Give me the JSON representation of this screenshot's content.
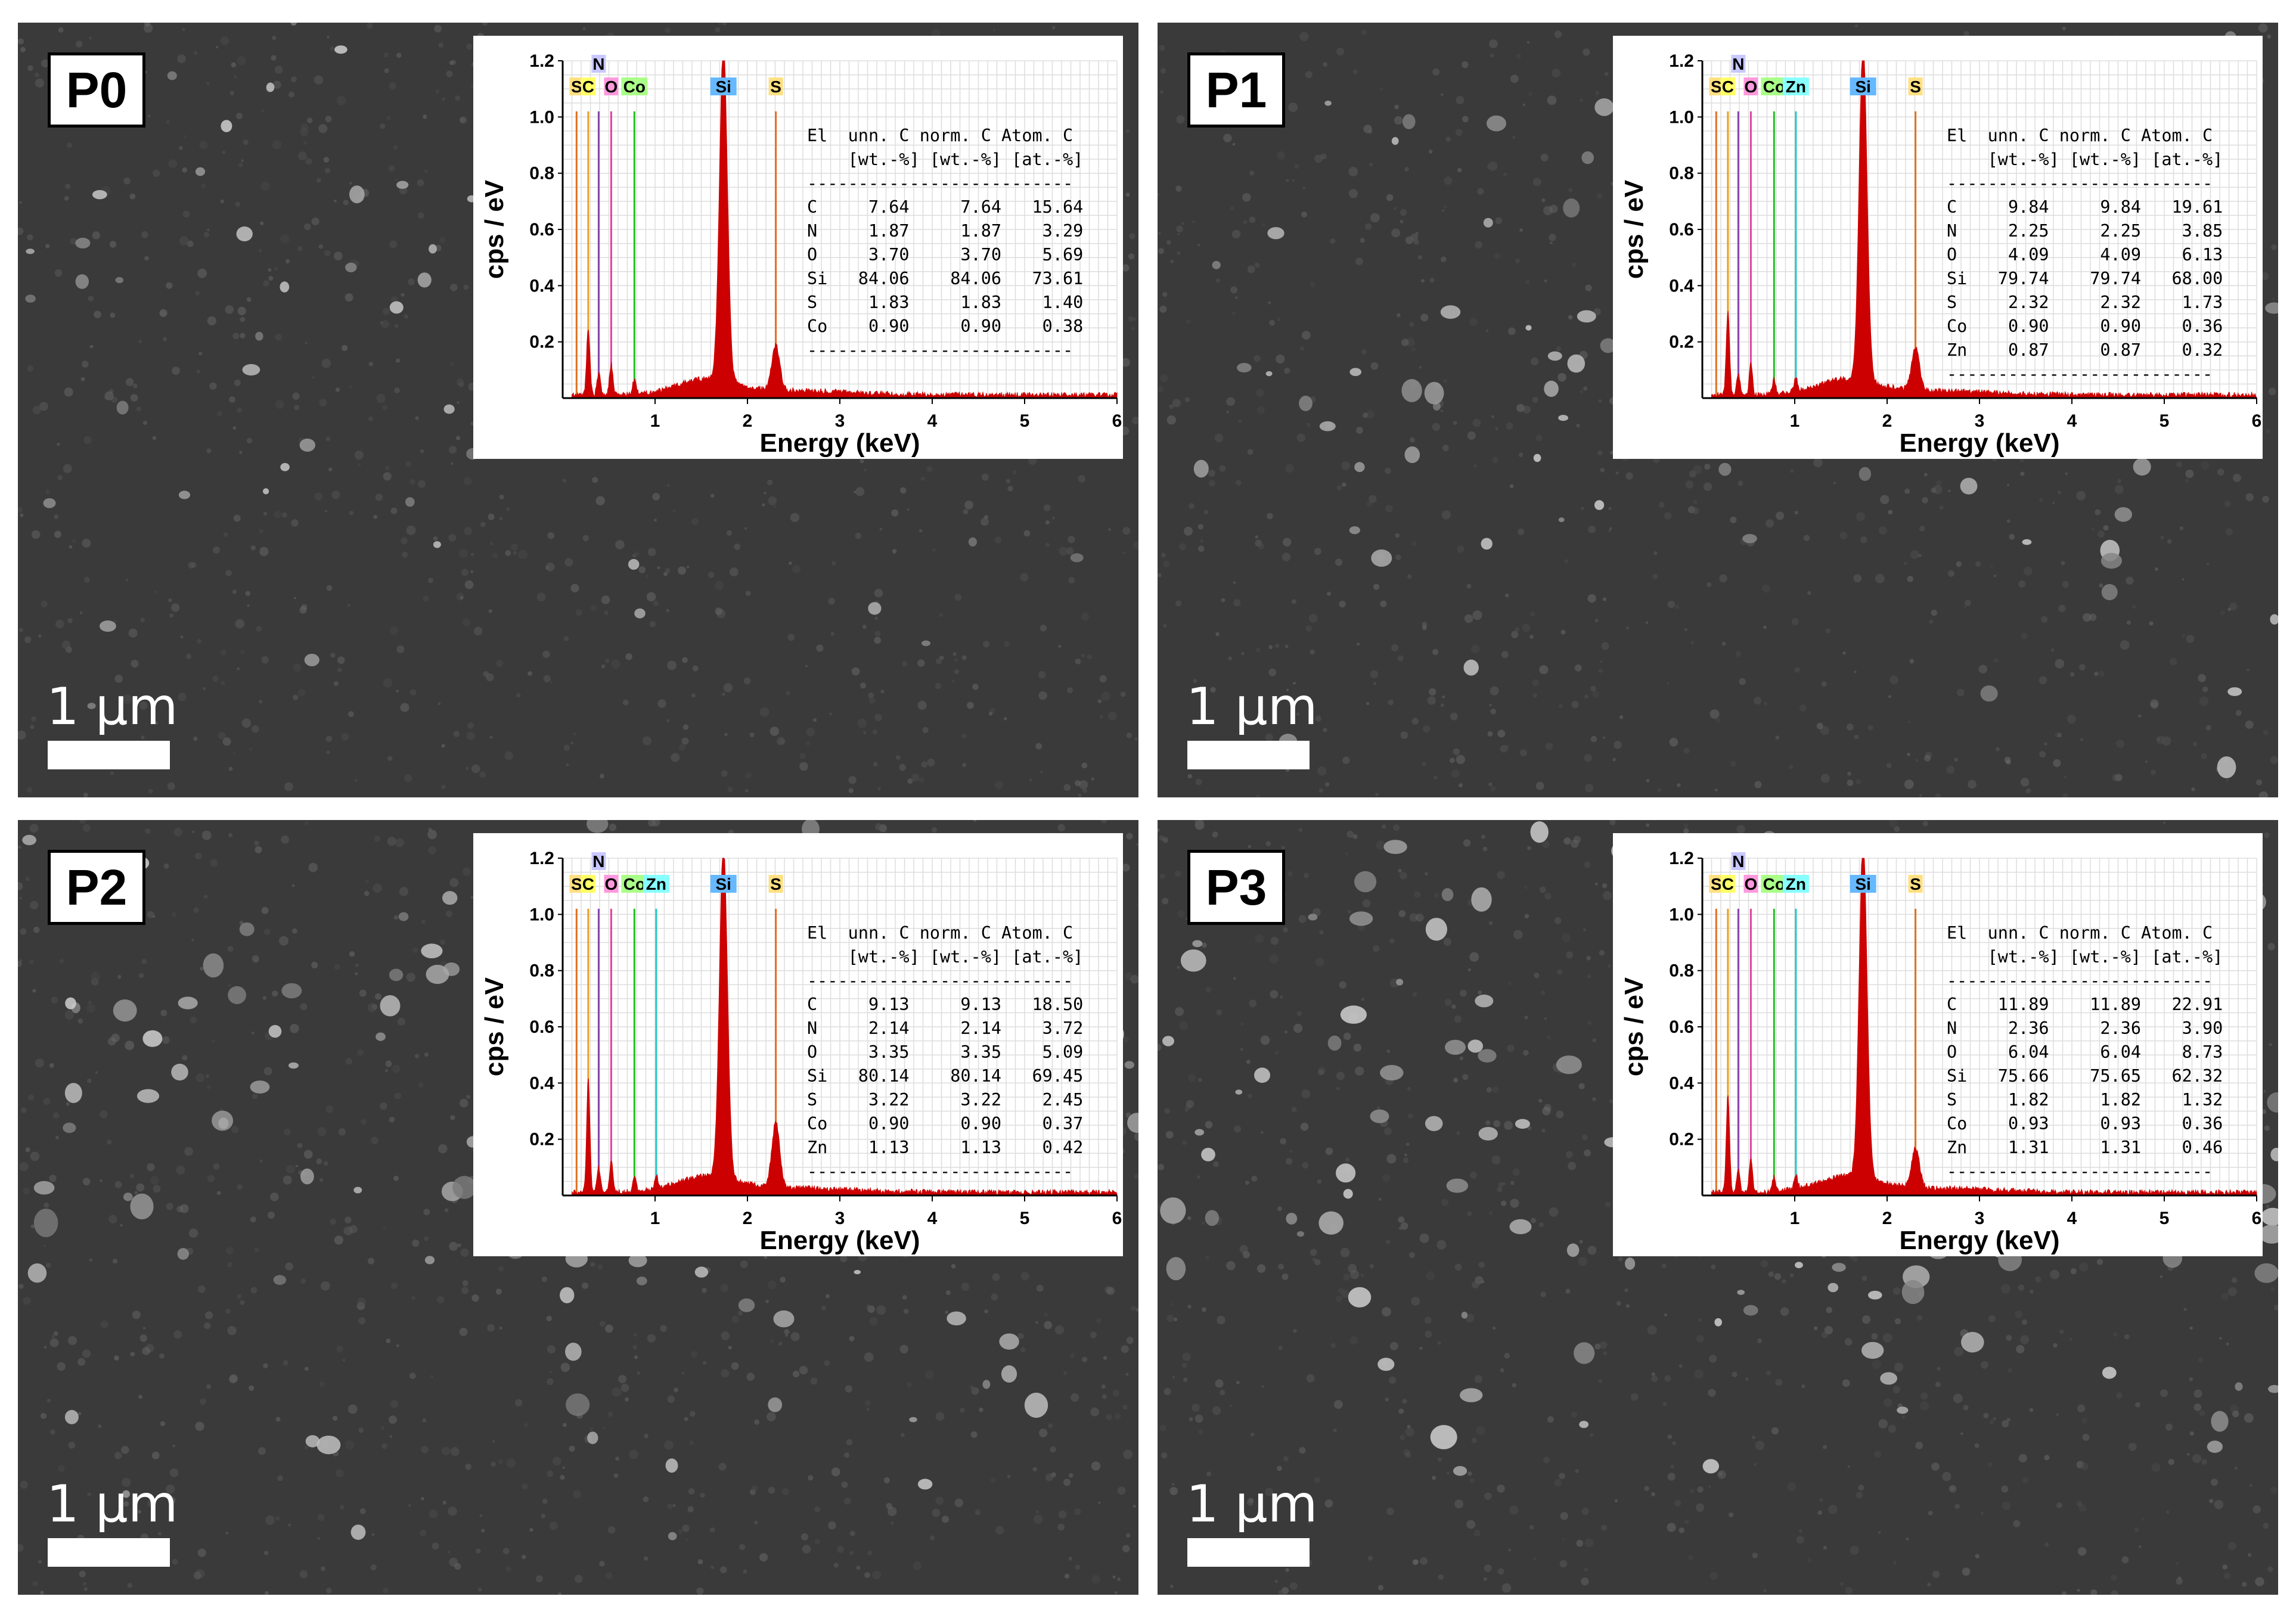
{
  "scale_bar_label": "1 µm",
  "table_header": [
    "El",
    "unn. C",
    "norm. C",
    "Atom. C"
  ],
  "table_units": [
    "[wt.-%]",
    "[wt.-%]",
    "[at.-%]"
  ],
  "colors": {
    "spectrum": "#cc0000",
    "Si_line": "#8ab4e0",
    "S_line": "#e07020",
    "C_line": "#e8a020",
    "N_line": "#8844aa",
    "O_line": "#e040a0",
    "Co_line": "#22c022",
    "Zn_line": "#22c8c8"
  },
  "chart_data": [
    {
      "type": "area",
      "panel_label": "P0",
      "xlabel": "Energy (keV)",
      "ylabel": "cps / eV",
      "xlim": [
        0,
        6
      ],
      "ylim": [
        0,
        1.2
      ],
      "x_ticks": [
        "1",
        "2",
        "3",
        "4",
        "5",
        "6"
      ],
      "y_ticks": [
        "0.2",
        "0.4",
        "0.6",
        "0.8",
        "1.0",
        "1.2"
      ],
      "grid": true,
      "peak_labels": [
        {
          "text": "S",
          "energy": 0.15
        },
        {
          "text": "C",
          "energy": 0.277
        },
        {
          "text": "N",
          "energy": 0.39
        },
        {
          "text": "O",
          "energy": 0.525
        },
        {
          "text": "Co",
          "energy": 0.776
        },
        {
          "text": "Si",
          "energy": 1.74
        },
        {
          "text": "S",
          "energy": 2.307
        }
      ],
      "peaks": [
        {
          "energy": 0.277,
          "cps": 0.24
        },
        {
          "energy": 0.39,
          "cps": 0.08
        },
        {
          "energy": 0.525,
          "cps": 0.11
        },
        {
          "energy": 0.776,
          "cps": 0.05
        },
        {
          "energy": 1.74,
          "cps": 1.2
        },
        {
          "energy": 2.307,
          "cps": 0.16
        }
      ],
      "table": [
        [
          "C",
          "7.64",
          "7.64",
          "15.64"
        ],
        [
          "N",
          "1.87",
          "1.87",
          "3.29"
        ],
        [
          "O",
          "3.70",
          "3.70",
          "5.69"
        ],
        [
          "Si",
          "84.06",
          "84.06",
          "73.61"
        ],
        [
          "S",
          "1.83",
          "1.83",
          "1.40"
        ],
        [
          "Co",
          "0.90",
          "0.90",
          "0.38"
        ]
      ]
    },
    {
      "type": "area",
      "panel_label": "P1",
      "xlabel": "Energy (keV)",
      "ylabel": "cps / eV",
      "xlim": [
        0,
        6
      ],
      "ylim": [
        0,
        1.2
      ],
      "x_ticks": [
        "1",
        "2",
        "3",
        "4",
        "5",
        "6"
      ],
      "y_ticks": [
        "0.2",
        "0.4",
        "0.6",
        "0.8",
        "1.0",
        "1.2"
      ],
      "grid": true,
      "peak_labels": [
        {
          "text": "S",
          "energy": 0.15
        },
        {
          "text": "C",
          "energy": 0.277
        },
        {
          "text": "N",
          "energy": 0.39
        },
        {
          "text": "O",
          "energy": 0.525
        },
        {
          "text": "Co",
          "energy": 0.776
        },
        {
          "text": "Zn",
          "energy": 1.012
        },
        {
          "text": "Si",
          "energy": 1.74
        },
        {
          "text": "S",
          "energy": 2.307
        }
      ],
      "peaks": [
        {
          "energy": 0.277,
          "cps": 0.3
        },
        {
          "energy": 0.39,
          "cps": 0.08
        },
        {
          "energy": 0.525,
          "cps": 0.11
        },
        {
          "energy": 0.776,
          "cps": 0.05
        },
        {
          "energy": 1.012,
          "cps": 0.05
        },
        {
          "energy": 1.74,
          "cps": 1.2
        },
        {
          "energy": 2.307,
          "cps": 0.15
        }
      ],
      "table": [
        [
          "C",
          "9.84",
          "9.84",
          "19.61"
        ],
        [
          "N",
          "2.25",
          "2.25",
          "3.85"
        ],
        [
          "O",
          "4.09",
          "4.09",
          "6.13"
        ],
        [
          "Si",
          "79.74",
          "79.74",
          "68.00"
        ],
        [
          "S",
          "2.32",
          "2.32",
          "1.73"
        ],
        [
          "Co",
          "0.90",
          "0.90",
          "0.36"
        ],
        [
          "Zn",
          "0.87",
          "0.87",
          "0.32"
        ]
      ]
    },
    {
      "type": "area",
      "panel_label": "P2",
      "xlabel": "Energy (keV)",
      "ylabel": "cps / eV",
      "xlim": [
        0,
        6
      ],
      "ylim": [
        0,
        1.2
      ],
      "x_ticks": [
        "1",
        "2",
        "3",
        "4",
        "5",
        "6"
      ],
      "y_ticks": [
        "0.2",
        "0.4",
        "0.6",
        "0.8",
        "1.0",
        "1.2"
      ],
      "grid": true,
      "peak_labels": [
        {
          "text": "S",
          "energy": 0.15
        },
        {
          "text": "C",
          "energy": 0.277
        },
        {
          "text": "N",
          "energy": 0.39
        },
        {
          "text": "O",
          "energy": 0.525
        },
        {
          "text": "Co",
          "energy": 0.776
        },
        {
          "text": "Zn",
          "energy": 1.012
        },
        {
          "text": "Si",
          "energy": 1.74
        },
        {
          "text": "S",
          "energy": 2.307
        }
      ],
      "peaks": [
        {
          "energy": 0.277,
          "cps": 0.4
        },
        {
          "energy": 0.39,
          "cps": 0.09
        },
        {
          "energy": 0.525,
          "cps": 0.11
        },
        {
          "energy": 0.776,
          "cps": 0.05
        },
        {
          "energy": 1.012,
          "cps": 0.05
        },
        {
          "energy": 1.74,
          "cps": 1.2
        },
        {
          "energy": 2.307,
          "cps": 0.23
        }
      ],
      "table": [
        [
          "C",
          "9.13",
          "9.13",
          "18.50"
        ],
        [
          "N",
          "2.14",
          "2.14",
          "3.72"
        ],
        [
          "O",
          "3.35",
          "3.35",
          "5.09"
        ],
        [
          "Si",
          "80.14",
          "80.14",
          "69.45"
        ],
        [
          "S",
          "3.22",
          "3.22",
          "2.45"
        ],
        [
          "Co",
          "0.90",
          "0.90",
          "0.37"
        ],
        [
          "Zn",
          "1.13",
          "1.13",
          "0.42"
        ]
      ]
    },
    {
      "type": "area",
      "panel_label": "P3",
      "xlabel": "Energy (keV)",
      "ylabel": "cps / eV",
      "xlim": [
        0,
        6
      ],
      "ylim": [
        0,
        1.2
      ],
      "x_ticks": [
        "1",
        "2",
        "3",
        "4",
        "5",
        "6"
      ],
      "y_ticks": [
        "0.2",
        "0.4",
        "0.6",
        "0.8",
        "1.0",
        "1.2"
      ],
      "grid": true,
      "peak_labels": [
        {
          "text": "S",
          "energy": 0.15
        },
        {
          "text": "C",
          "energy": 0.277
        },
        {
          "text": "N",
          "energy": 0.39
        },
        {
          "text": "O",
          "energy": 0.525
        },
        {
          "text": "Co",
          "energy": 0.776
        },
        {
          "text": "Zn",
          "energy": 1.012
        },
        {
          "text": "Si",
          "energy": 1.74
        },
        {
          "text": "S",
          "energy": 2.307
        }
      ],
      "peaks": [
        {
          "energy": 0.277,
          "cps": 0.35
        },
        {
          "energy": 0.39,
          "cps": 0.08
        },
        {
          "energy": 0.525,
          "cps": 0.12
        },
        {
          "energy": 0.776,
          "cps": 0.05
        },
        {
          "energy": 1.012,
          "cps": 0.05
        },
        {
          "energy": 1.74,
          "cps": 1.2
        },
        {
          "energy": 2.307,
          "cps": 0.14
        }
      ],
      "table": [
        [
          "C",
          "11.89",
          "11.89",
          "22.91"
        ],
        [
          "N",
          "2.36",
          "2.36",
          "3.90"
        ],
        [
          "O",
          "6.04",
          "6.04",
          "8.73"
        ],
        [
          "Si",
          "75.66",
          "75.65",
          "62.32"
        ],
        [
          "S",
          "1.82",
          "1.82",
          "1.32"
        ],
        [
          "Co",
          "0.93",
          "0.93",
          "0.36"
        ],
        [
          "Zn",
          "1.31",
          "1.31",
          "0.46"
        ]
      ]
    }
  ]
}
